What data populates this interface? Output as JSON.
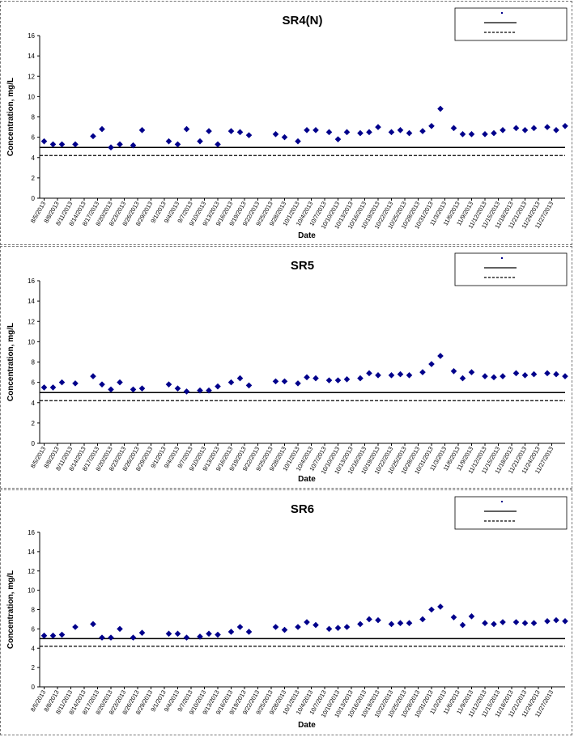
{
  "colors": {
    "marker": "#00008B",
    "axis": "#000000",
    "line": "#000000",
    "border": "#777777"
  },
  "chart_data": [
    {
      "type": "scatter",
      "title": "SR4(N)",
      "xlabel": "Date",
      "ylabel": "Concentration, mg/L",
      "ylim": [
        0,
        16
      ],
      "yticks": [
        0,
        2,
        4,
        6,
        8,
        10,
        12,
        14,
        16
      ],
      "xlim": [
        "2013-08-04",
        "2013-11-30"
      ],
      "xtick_labels": [
        "8/5/2013",
        "8/8/2013",
        "8/11/2013",
        "8/14/2013",
        "8/17/2013",
        "8/20/2013",
        "8/23/2013",
        "8/26/2013",
        "8/29/2013",
        "9/1/2013",
        "9/4/2013",
        "9/7/2013",
        "9/10/2013",
        "9/13/2013",
        "9/16/2013",
        "9/19/2013",
        "9/22/2013",
        "9/25/2013",
        "9/28/2013",
        "10/1/2013",
        "10/4/2013",
        "10/7/2013",
        "10/10/2013",
        "10/13/2013",
        "10/16/2013",
        "10/19/2013",
        "10/22/2013",
        "10/25/2013",
        "10/28/2013",
        "10/31/2013",
        "11/3/2013",
        "11/6/2013",
        "11/9/2013",
        "11/12/2013",
        "11/15/2013",
        "11/18/2013",
        "11/21/2013",
        "11/24/2013",
        "11/27/2013"
      ],
      "grid": false,
      "legend_position": "top-right",
      "legend": [
        {
          "kind": "marker",
          "label": ""
        },
        {
          "kind": "solid",
          "label": ""
        },
        {
          "kind": "dashed",
          "label": ""
        }
      ],
      "reference_lines": [
        {
          "style": "solid",
          "y": 5.0
        },
        {
          "style": "dashed",
          "y": 4.2
        }
      ],
      "series": [
        {
          "x": [
            "2013-08-05",
            "2013-08-07",
            "2013-08-09",
            "2013-08-12",
            "2013-08-16",
            "2013-08-18",
            "2013-08-20",
            "2013-08-22",
            "2013-08-25",
            "2013-08-27",
            "2013-09-02",
            "2013-09-04",
            "2013-09-06",
            "2013-09-09",
            "2013-09-11",
            "2013-09-13",
            "2013-09-16",
            "2013-09-18",
            "2013-09-20",
            "2013-09-26",
            "2013-09-28",
            "2013-10-01",
            "2013-10-03",
            "2013-10-05",
            "2013-10-08",
            "2013-10-10",
            "2013-10-12",
            "2013-10-15",
            "2013-10-17",
            "2013-10-19",
            "2013-10-22",
            "2013-10-24",
            "2013-10-26",
            "2013-10-29",
            "2013-10-31",
            "2013-11-02",
            "2013-11-05",
            "2013-11-07",
            "2013-11-09",
            "2013-11-12",
            "2013-11-14",
            "2013-11-16",
            "2013-11-19",
            "2013-11-21",
            "2013-11-23",
            "2013-11-26",
            "2013-11-28",
            "2013-11-30"
          ],
          "y": [
            5.6,
            5.3,
            5.3,
            5.3,
            6.1,
            6.8,
            5.0,
            5.3,
            5.2,
            6.7,
            5.6,
            5.3,
            6.8,
            5.6,
            6.6,
            5.3,
            6.6,
            6.5,
            6.2,
            6.3,
            6.0,
            5.6,
            6.7,
            6.7,
            6.5,
            5.8,
            6.5,
            6.4,
            6.5,
            7.0,
            6.5,
            6.7,
            6.4,
            6.6,
            7.1,
            8.8,
            6.9,
            6.3,
            6.3,
            6.3,
            6.4,
            6.7,
            6.9,
            6.7,
            6.9,
            7.0,
            6.7,
            7.1
          ]
        }
      ]
    },
    {
      "type": "scatter",
      "title": "SR5",
      "xlabel": "Date",
      "ylabel": "Concentration, mg/L",
      "ylim": [
        0,
        16
      ],
      "yticks": [
        0,
        2,
        4,
        6,
        8,
        10,
        12,
        14,
        16
      ],
      "xlim": [
        "2013-08-04",
        "2013-11-30"
      ],
      "xtick_labels": [
        "8/5/2013",
        "8/8/2013",
        "8/11/2013",
        "8/14/2013",
        "8/17/2013",
        "8/20/2013",
        "8/23/2013",
        "8/26/2013",
        "8/29/2013",
        "9/1/2013",
        "9/4/2013",
        "9/7/2013",
        "9/10/2013",
        "9/13/2013",
        "9/16/2013",
        "9/19/2013",
        "9/22/2013",
        "9/25/2013",
        "9/28/2013",
        "10/1/2013",
        "10/4/2013",
        "10/7/2013",
        "10/10/2013",
        "10/13/2013",
        "10/16/2013",
        "10/19/2013",
        "10/22/2013",
        "10/25/2013",
        "10/28/2013",
        "10/31/2013",
        "11/3/2013",
        "11/6/2013",
        "11/9/2013",
        "11/12/2013",
        "11/15/2013",
        "11/18/2013",
        "11/21/2013",
        "11/24/2013",
        "11/27/2013"
      ],
      "grid": false,
      "legend_position": "top-right",
      "legend": [
        {
          "kind": "marker",
          "label": ""
        },
        {
          "kind": "solid",
          "label": ""
        },
        {
          "kind": "dashed",
          "label": ""
        }
      ],
      "reference_lines": [
        {
          "style": "solid",
          "y": 5.0
        },
        {
          "style": "dashed",
          "y": 4.2
        }
      ],
      "series": [
        {
          "x": [
            "2013-08-05",
            "2013-08-07",
            "2013-08-09",
            "2013-08-12",
            "2013-08-16",
            "2013-08-18",
            "2013-08-20",
            "2013-08-22",
            "2013-08-25",
            "2013-08-27",
            "2013-09-02",
            "2013-09-04",
            "2013-09-06",
            "2013-09-09",
            "2013-09-11",
            "2013-09-13",
            "2013-09-16",
            "2013-09-18",
            "2013-09-20",
            "2013-09-26",
            "2013-09-28",
            "2013-10-01",
            "2013-10-03",
            "2013-10-05",
            "2013-10-08",
            "2013-10-10",
            "2013-10-12",
            "2013-10-15",
            "2013-10-17",
            "2013-10-19",
            "2013-10-22",
            "2013-10-24",
            "2013-10-26",
            "2013-10-29",
            "2013-10-31",
            "2013-11-02",
            "2013-11-05",
            "2013-11-07",
            "2013-11-09",
            "2013-11-12",
            "2013-11-14",
            "2013-11-16",
            "2013-11-19",
            "2013-11-21",
            "2013-11-23",
            "2013-11-26",
            "2013-11-28",
            "2013-11-30"
          ],
          "y": [
            5.5,
            5.5,
            6.0,
            5.9,
            6.6,
            5.8,
            5.3,
            6.0,
            5.3,
            5.4,
            5.8,
            5.4,
            5.1,
            5.2,
            5.2,
            5.6,
            6.0,
            6.4,
            5.7,
            6.1,
            6.1,
            5.9,
            6.5,
            6.4,
            6.2,
            6.2,
            6.3,
            6.4,
            6.9,
            6.7,
            6.7,
            6.8,
            6.7,
            7.0,
            7.8,
            8.6,
            7.1,
            6.4,
            7.0,
            6.6,
            6.5,
            6.6,
            6.9,
            6.7,
            6.8,
            6.9,
            6.8,
            6.6
          ]
        }
      ]
    },
    {
      "type": "scatter",
      "title": "SR6",
      "xlabel": "Date",
      "ylabel": "Concentration, mg/L",
      "ylim": [
        0,
        16
      ],
      "yticks": [
        0,
        2,
        4,
        6,
        8,
        10,
        12,
        14,
        16
      ],
      "xlim": [
        "2013-08-04",
        "2013-11-30"
      ],
      "xtick_labels": [
        "8/5/2013",
        "8/8/2013",
        "8/11/2013",
        "8/14/2013",
        "8/17/2013",
        "8/20/2013",
        "8/23/2013",
        "8/26/2013",
        "8/29/2013",
        "9/1/2013",
        "9/4/2013",
        "9/7/2013",
        "9/10/2013",
        "9/13/2013",
        "9/16/2013",
        "9/19/2013",
        "9/22/2013",
        "9/25/2013",
        "9/28/2013",
        "10/1/2013",
        "10/4/2013",
        "10/7/2013",
        "10/10/2013",
        "10/13/2013",
        "10/16/2013",
        "10/19/2013",
        "10/22/2013",
        "10/25/2013",
        "10/28/2013",
        "10/31/2013",
        "11/3/2013",
        "11/6/2013",
        "11/9/2013",
        "11/12/2013",
        "11/15/2013",
        "11/18/2013",
        "11/21/2013",
        "11/24/2013",
        "11/27/2013"
      ],
      "grid": false,
      "legend_position": "top-right",
      "legend": [
        {
          "kind": "marker",
          "label": ""
        },
        {
          "kind": "solid",
          "label": ""
        },
        {
          "kind": "dashed",
          "label": ""
        }
      ],
      "reference_lines": [
        {
          "style": "solid",
          "y": 5.0
        },
        {
          "style": "dashed",
          "y": 4.2
        }
      ],
      "series": [
        {
          "x": [
            "2013-08-05",
            "2013-08-07",
            "2013-08-09",
            "2013-08-12",
            "2013-08-16",
            "2013-08-18",
            "2013-08-20",
            "2013-08-22",
            "2013-08-25",
            "2013-08-27",
            "2013-09-02",
            "2013-09-04",
            "2013-09-06",
            "2013-09-09",
            "2013-09-11",
            "2013-09-13",
            "2013-09-16",
            "2013-09-18",
            "2013-09-20",
            "2013-09-26",
            "2013-09-28",
            "2013-10-01",
            "2013-10-03",
            "2013-10-05",
            "2013-10-08",
            "2013-10-10",
            "2013-10-12",
            "2013-10-15",
            "2013-10-17",
            "2013-10-19",
            "2013-10-22",
            "2013-10-24",
            "2013-10-26",
            "2013-10-29",
            "2013-10-31",
            "2013-11-02",
            "2013-11-05",
            "2013-11-07",
            "2013-11-09",
            "2013-11-12",
            "2013-11-14",
            "2013-11-16",
            "2013-11-19",
            "2013-11-21",
            "2013-11-23",
            "2013-11-26",
            "2013-11-28",
            "2013-11-30"
          ],
          "y": [
            5.3,
            5.3,
            5.4,
            6.2,
            6.5,
            5.1,
            5.1,
            6.0,
            5.1,
            5.6,
            5.5,
            5.5,
            5.1,
            5.2,
            5.5,
            5.4,
            5.7,
            6.2,
            5.7,
            6.2,
            5.9,
            6.2,
            6.7,
            6.4,
            6.0,
            6.1,
            6.2,
            6.5,
            7.0,
            6.9,
            6.5,
            6.6,
            6.6,
            7.0,
            8.0,
            8.3,
            7.2,
            6.4,
            7.3,
            6.6,
            6.5,
            6.7,
            6.7,
            6.6,
            6.6,
            6.8,
            6.9,
            6.8
          ]
        }
      ]
    }
  ]
}
